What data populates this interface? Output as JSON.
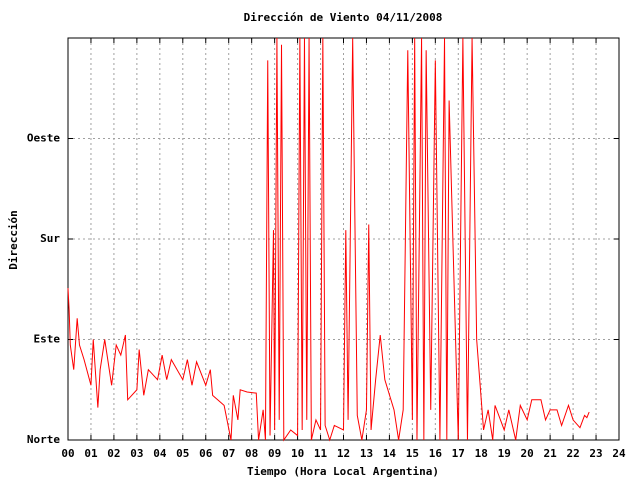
{
  "chart_data": {
    "type": "line",
    "title": "Dirección de Viento 04/11/2008",
    "x_label": "Tiempo (Hora Local Argentina)",
    "y_label": "Dirección",
    "color": "#ff0000",
    "grid": true,
    "xlim": [
      0,
      24
    ],
    "ylim": [
      0,
      360
    ],
    "xticks": [
      {
        "value": 0,
        "label": "00"
      },
      {
        "value": 1,
        "label": "01"
      },
      {
        "value": 2,
        "label": "02"
      },
      {
        "value": 3,
        "label": "03"
      },
      {
        "value": 4,
        "label": "04"
      },
      {
        "value": 5,
        "label": "05"
      },
      {
        "value": 6,
        "label": "06"
      },
      {
        "value": 7,
        "label": "07"
      },
      {
        "value": 8,
        "label": "08"
      },
      {
        "value": 9,
        "label": "09"
      },
      10,
      11,
      12,
      13,
      14,
      15,
      16,
      17,
      18,
      19,
      20,
      21,
      22,
      23,
      24
    ],
    "yticks": [
      {
        "value": 0,
        "label": "Norte"
      },
      {
        "value": 90,
        "label": "Este"
      },
      {
        "value": 180,
        "label": "Sur"
      },
      {
        "value": 270,
        "label": "Oeste"
      }
    ],
    "x": [
      0.0,
      0.05,
      0.1,
      0.25,
      0.4,
      0.5,
      0.7,
      1.0,
      1.1,
      1.3,
      1.4,
      1.6,
      1.9,
      2.1,
      2.3,
      2.5,
      2.6,
      3.0,
      3.1,
      3.3,
      3.5,
      3.9,
      4.1,
      4.3,
      4.5,
      5.0,
      5.2,
      5.4,
      5.6,
      6.0,
      6.2,
      6.3,
      6.8,
      7.1,
      7.2,
      7.4,
      7.5,
      7.8,
      8.2,
      8.3,
      8.5,
      8.6,
      8.7,
      8.8,
      8.95,
      9.0,
      9.1,
      9.2,
      9.3,
      9.4,
      9.7,
      10.0,
      10.1,
      10.2,
      10.3,
      10.4,
      10.5,
      10.6,
      10.8,
      11.0,
      11.1,
      11.2,
      11.4,
      11.6,
      12.0,
      12.1,
      12.2,
      12.4,
      12.6,
      12.8,
      13.0,
      13.1,
      13.2,
      13.4,
      13.6,
      13.8,
      14.2,
      14.4,
      14.6,
      14.8,
      15.0,
      15.1,
      15.2,
      15.4,
      15.5,
      15.6,
      15.8,
      16.0,
      16.2,
      16.4,
      16.5,
      16.6,
      17.0,
      17.2,
      17.4,
      17.6,
      17.8,
      18.1,
      18.3,
      18.5,
      18.6,
      19.0,
      19.2,
      19.5,
      19.7,
      20.0,
      20.2,
      20.6,
      20.8,
      21.0,
      21.3,
      21.5,
      21.8,
      22.0,
      22.3,
      22.5,
      22.6,
      22.7
    ],
    "values": [
      136,
      116,
      85,
      63,
      109,
      85,
      72,
      49,
      90,
      29,
      63,
      90,
      49,
      85,
      76,
      94,
      36,
      45,
      81,
      40,
      63,
      54,
      76,
      54,
      72,
      54,
      72,
      49,
      70,
      49,
      63,
      40,
      31,
      0,
      40,
      18,
      45,
      43,
      42,
      0,
      27,
      0,
      340,
      4,
      188,
      9,
      360,
      18,
      354,
      0,
      9,
      4,
      360,
      9,
      360,
      18,
      360,
      0,
      18,
      9,
      360,
      13,
      0,
      13,
      9,
      188,
      18,
      360,
      22,
      0,
      27,
      193,
      9,
      54,
      94,
      54,
      27,
      0,
      27,
      349,
      18,
      360,
      0,
      360,
      0,
      349,
      27,
      340,
      0,
      360,
      0,
      304,
      0,
      360,
      0,
      360,
      90,
      9,
      27,
      0,
      31,
      9,
      27,
      0,
      31,
      18,
      36,
      36,
      18,
      27,
      27,
      13,
      31,
      18,
      11,
      22,
      20,
      25
    ]
  }
}
